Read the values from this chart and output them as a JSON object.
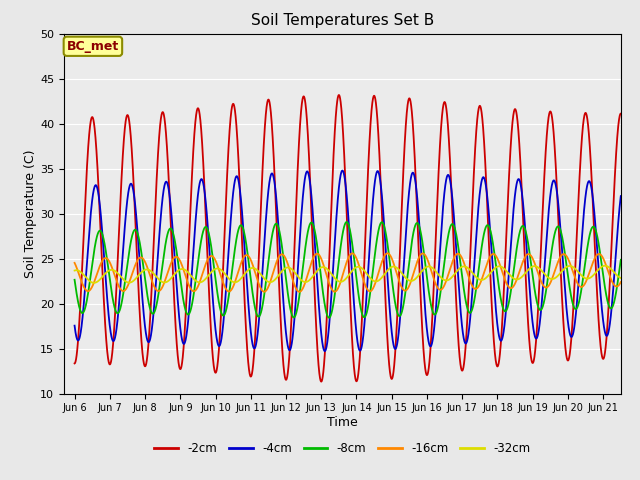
{
  "title": "Soil Temperatures Set B",
  "xlabel": "Time",
  "ylabel": "Soil Temperature (C)",
  "ylim": [
    10,
    50
  ],
  "annotation": "BC_met",
  "series_params": {
    "-2cm": {
      "color": "#CC0000",
      "amp": 13.5,
      "mean": 27.0,
      "phase_lag": 0.0,
      "lw": 1.3
    },
    "-4cm": {
      "color": "#0000CC",
      "amp": 8.5,
      "mean": 24.5,
      "phase_lag": 0.1,
      "lw": 1.3
    },
    "-8cm": {
      "color": "#00BB00",
      "amp": 4.5,
      "mean": 23.5,
      "phase_lag": 0.22,
      "lw": 1.3
    },
    "-16cm": {
      "color": "#FF8800",
      "amp": 1.8,
      "mean": 23.2,
      "phase_lag": 0.38,
      "lw": 1.3
    },
    "-32cm": {
      "color": "#DDDD00",
      "amp": 0.7,
      "mean": 23.0,
      "phase_lag": 0.55,
      "lw": 1.3
    }
  },
  "xtick_positions": [
    0,
    1,
    2,
    3,
    4,
    5,
    6,
    7,
    8,
    9,
    10,
    11,
    12,
    13,
    14,
    15
  ],
  "xtick_labels": [
    "Jun 6",
    "Jun 7",
    "Jun 8",
    "Jun 9",
    "Jun 10",
    "Jun 11",
    "Jun 12",
    "Jun 13",
    "Jun 14",
    "Jun 15",
    "Jun 16",
    "Jun 17",
    "Jun 18",
    "Jun 19",
    "Jun 20",
    "Jun 21"
  ],
  "ytick_positions": [
    10,
    15,
    20,
    25,
    30,
    35,
    40,
    45,
    50
  ],
  "legend_order": [
    "-2cm",
    "-4cm",
    "-8cm",
    "-16cm",
    "-32cm"
  ],
  "background_color": "#E8E8E8",
  "plot_bg_color": "#EBEBEB",
  "grid_color": "#FFFFFF",
  "figsize": [
    6.4,
    4.8
  ],
  "dpi": 100
}
